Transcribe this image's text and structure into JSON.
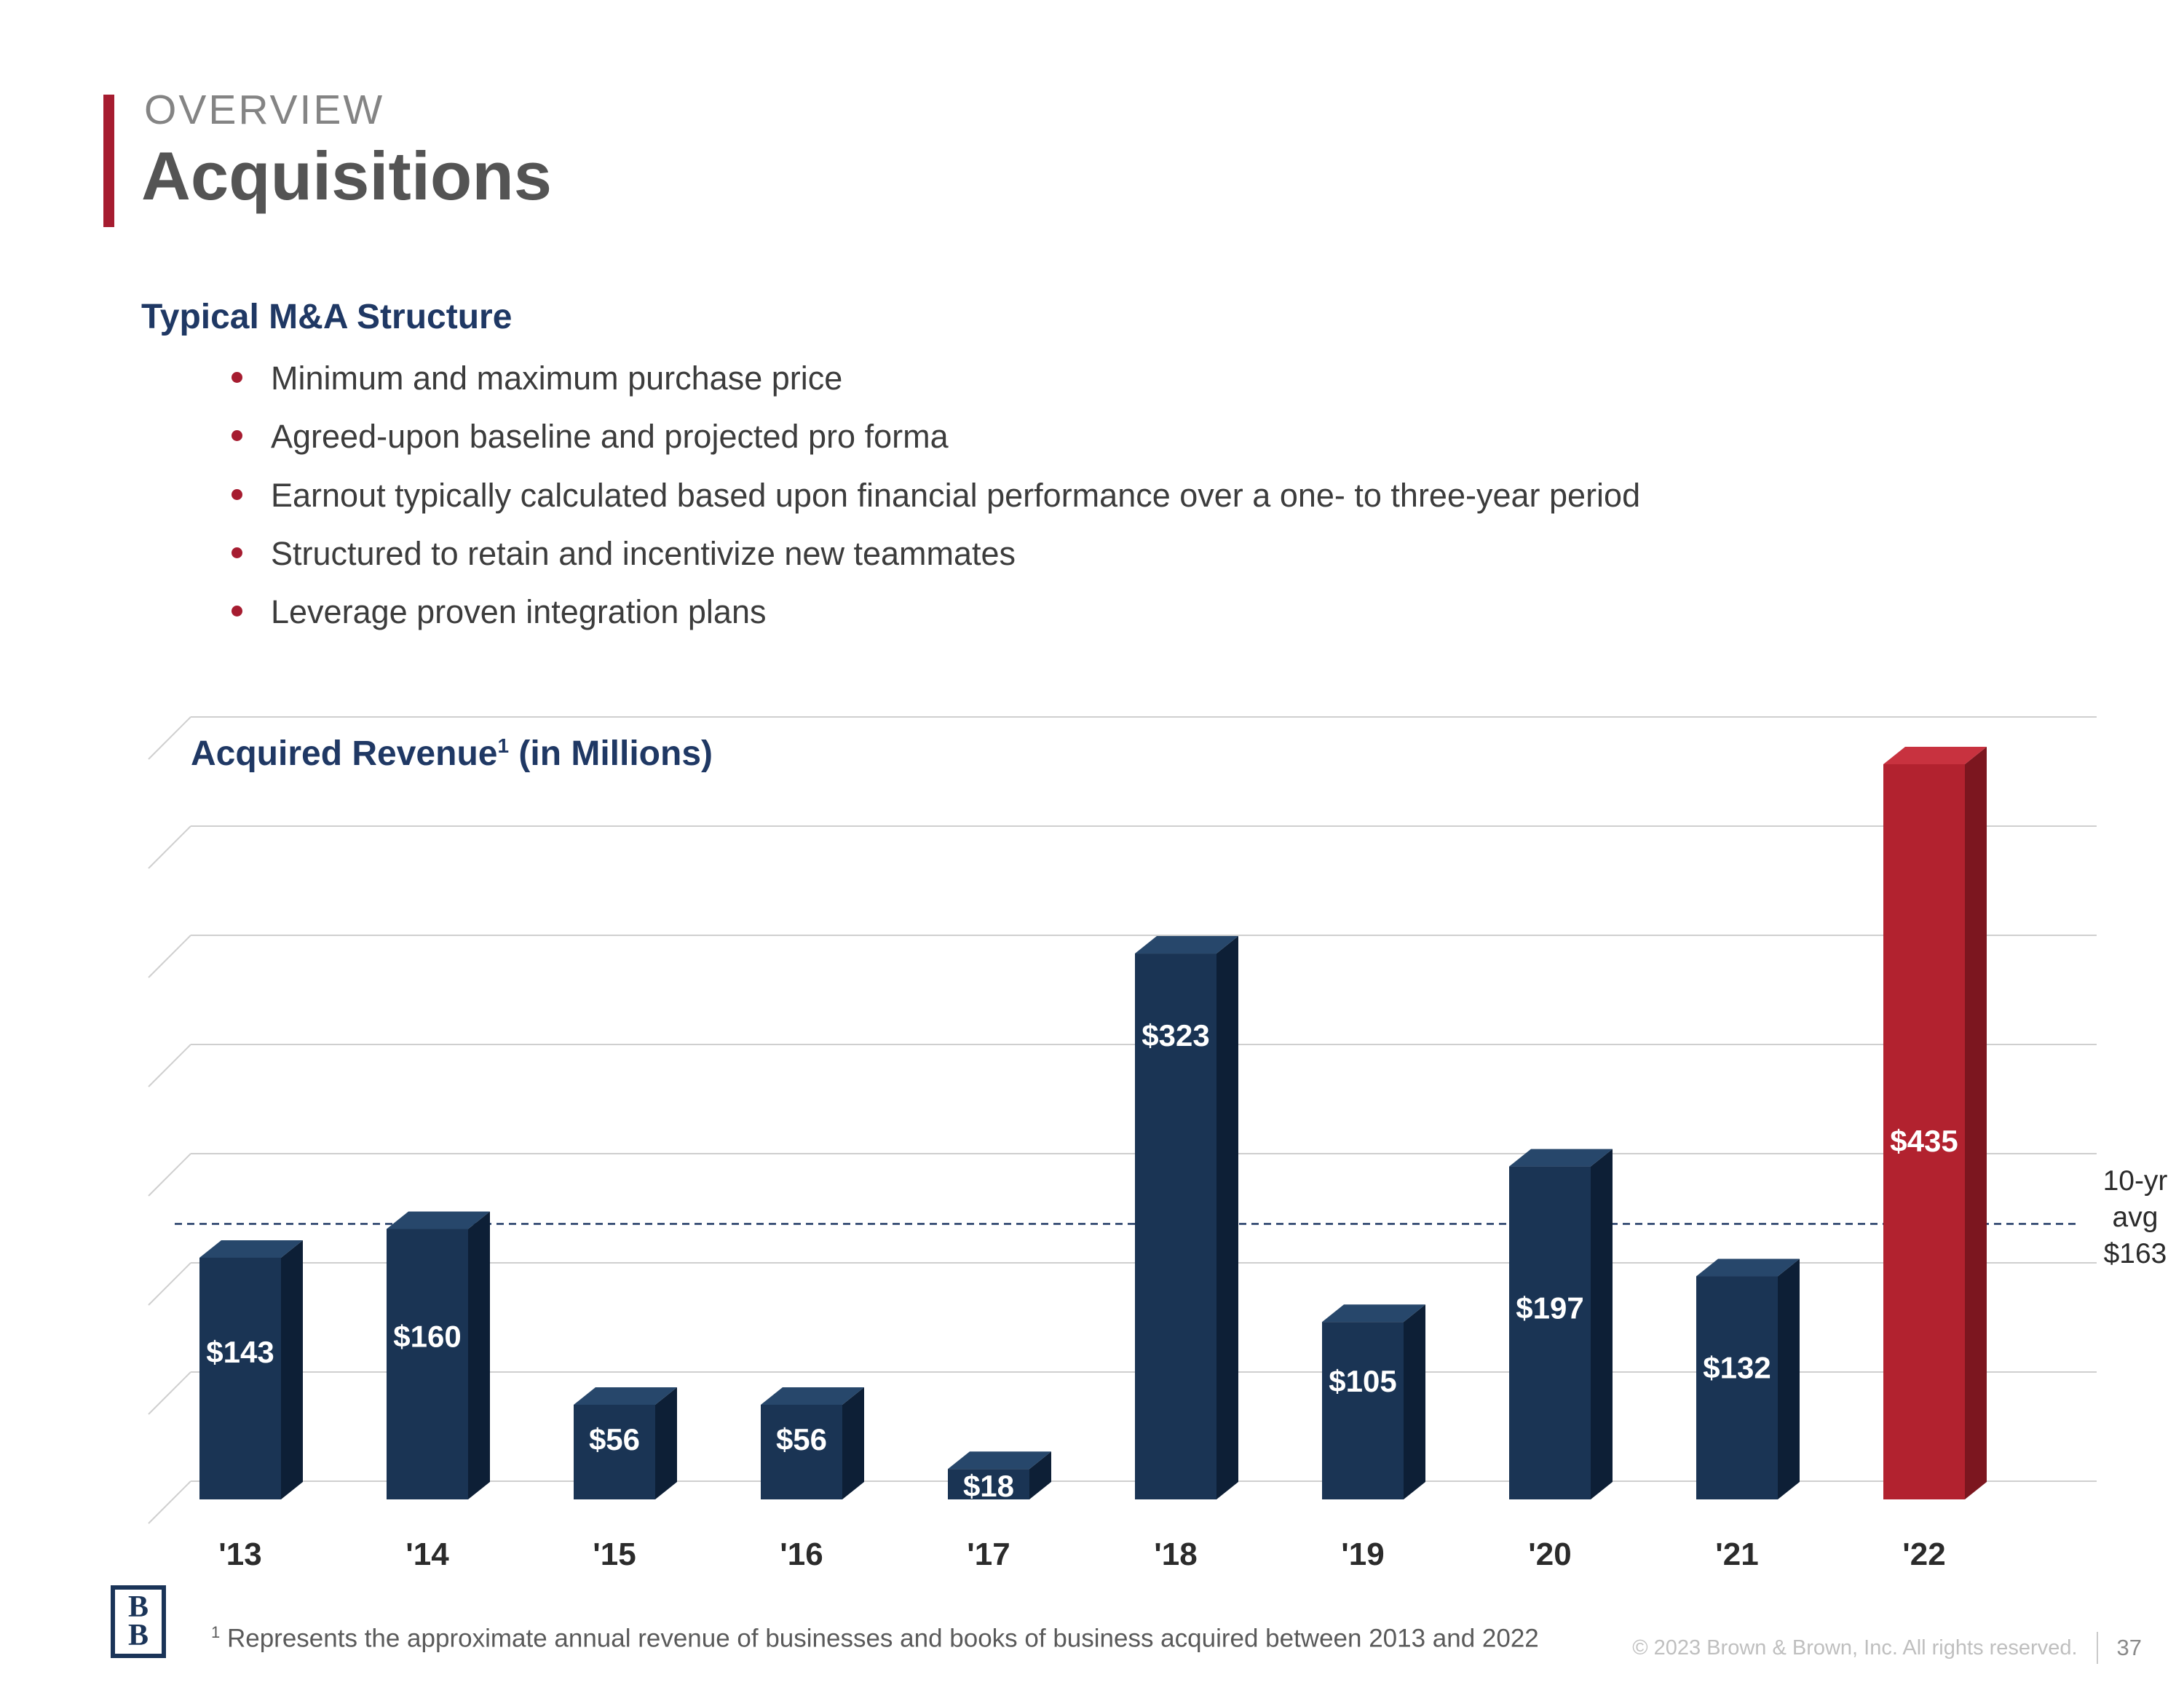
{
  "header": {
    "eyebrow": "OVERVIEW",
    "title": "Acquisitions"
  },
  "section": {
    "heading": "Typical M&A Structure",
    "bullets": [
      "Minimum and maximum purchase price",
      "Agreed-upon baseline and projected pro forma",
      "Earnout typically calculated based upon financial performance over a one- to three-year period",
      "Structured to retain and incentivize new teammates",
      "Leverage proven integration plans"
    ]
  },
  "chart": {
    "title_text": "Acquired Revenue",
    "title_sup": "1",
    "title_rest": " (in Millions)"
  },
  "chart_data": {
    "type": "bar",
    "title": "Acquired Revenue (in Millions)",
    "categories": [
      "'13",
      "'14",
      "'15",
      "'16",
      "'17",
      "'18",
      "'19",
      "'20",
      "'21",
      "'22"
    ],
    "values": [
      143,
      160,
      56,
      56,
      18,
      323,
      105,
      197,
      132,
      435
    ],
    "data_labels": [
      "$143",
      "$160",
      "$56",
      "$56",
      "$18",
      "$323",
      "$105",
      "$197",
      "$132",
      "$435"
    ],
    "xlabel": "",
    "ylabel": "",
    "ylim": [
      0,
      480
    ],
    "grid": true,
    "legend": "none",
    "avg_line": {
      "value": 163,
      "label_lines": [
        "10-yr",
        "avg",
        "$163"
      ]
    },
    "colors": {
      "bar": "#1a3454",
      "bar_side": "#0d1f36",
      "bar_top": "#27476b",
      "highlight": "#b2222f",
      "highlight_side": "#7c161f",
      "highlight_top": "#c8323f",
      "highlight_index": 9,
      "avg_line": "#1f3864",
      "grid": "#cfcfcf",
      "label": "#ffffff",
      "axis_text": "#2b2b2b"
    }
  },
  "footer": {
    "logo_letters": [
      "B",
      "B"
    ],
    "footnote_sup": "1",
    "footnote_text": " Represents the approximate annual revenue of businesses and books of business acquired between 2013 and 2022",
    "copyright": "© 2023 Brown & Brown, Inc. All rights reserved.",
    "page": "37"
  }
}
